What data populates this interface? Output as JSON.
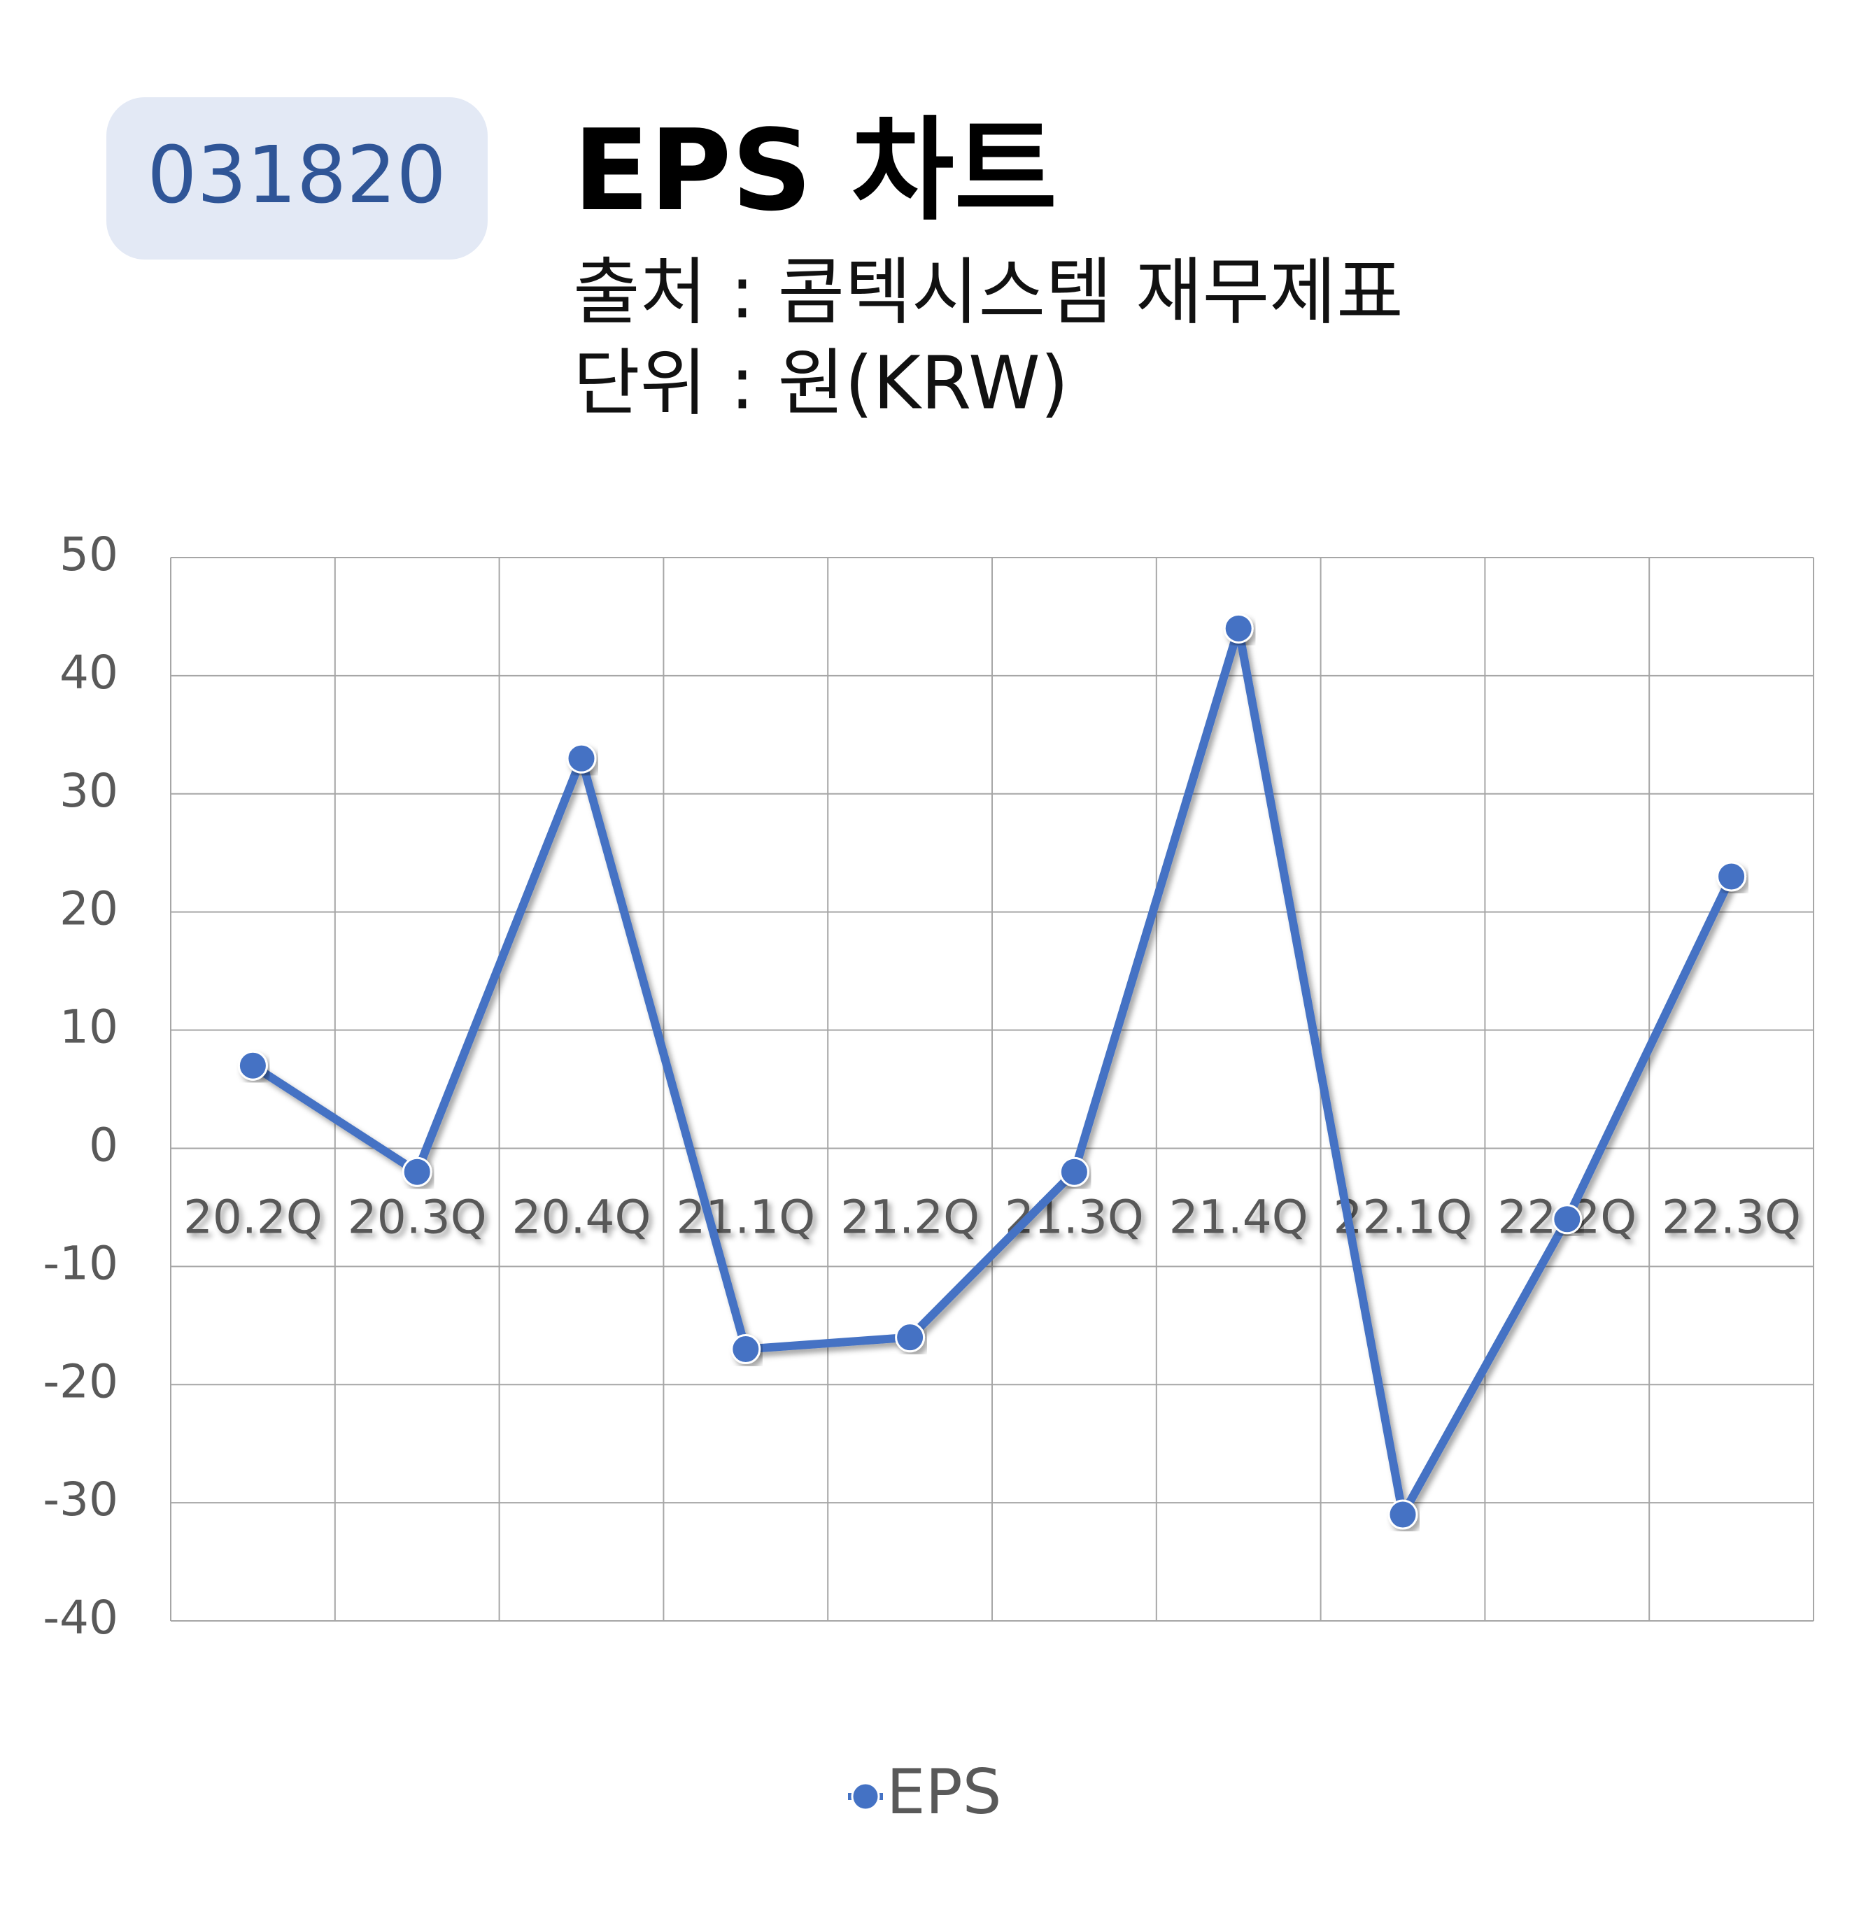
{
  "chart_data": {
    "type": "line",
    "code": "031820",
    "title": "EPS 차트",
    "subtitle": [
      "출처 : 콤텍시스템 재무제표",
      "단위 : 원(KRW)"
    ],
    "categories": [
      "20.2Q",
      "20.3Q",
      "20.4Q",
      "21.1Q",
      "21.2Q",
      "21.3Q",
      "21.4Q",
      "22.1Q",
      "22.2Q",
      "22.3Q"
    ],
    "series": [
      {
        "name": "EPS",
        "color": "#4472c4",
        "values": [
          7,
          -2,
          33,
          -17,
          -16,
          -2,
          44,
          -31,
          -6,
          23
        ]
      }
    ],
    "ylim": [
      -40,
      50
    ],
    "yticks": [
      -40,
      -30,
      -20,
      -10,
      0,
      10,
      20,
      30,
      40,
      50
    ],
    "grid": true,
    "legend": "bottom"
  }
}
